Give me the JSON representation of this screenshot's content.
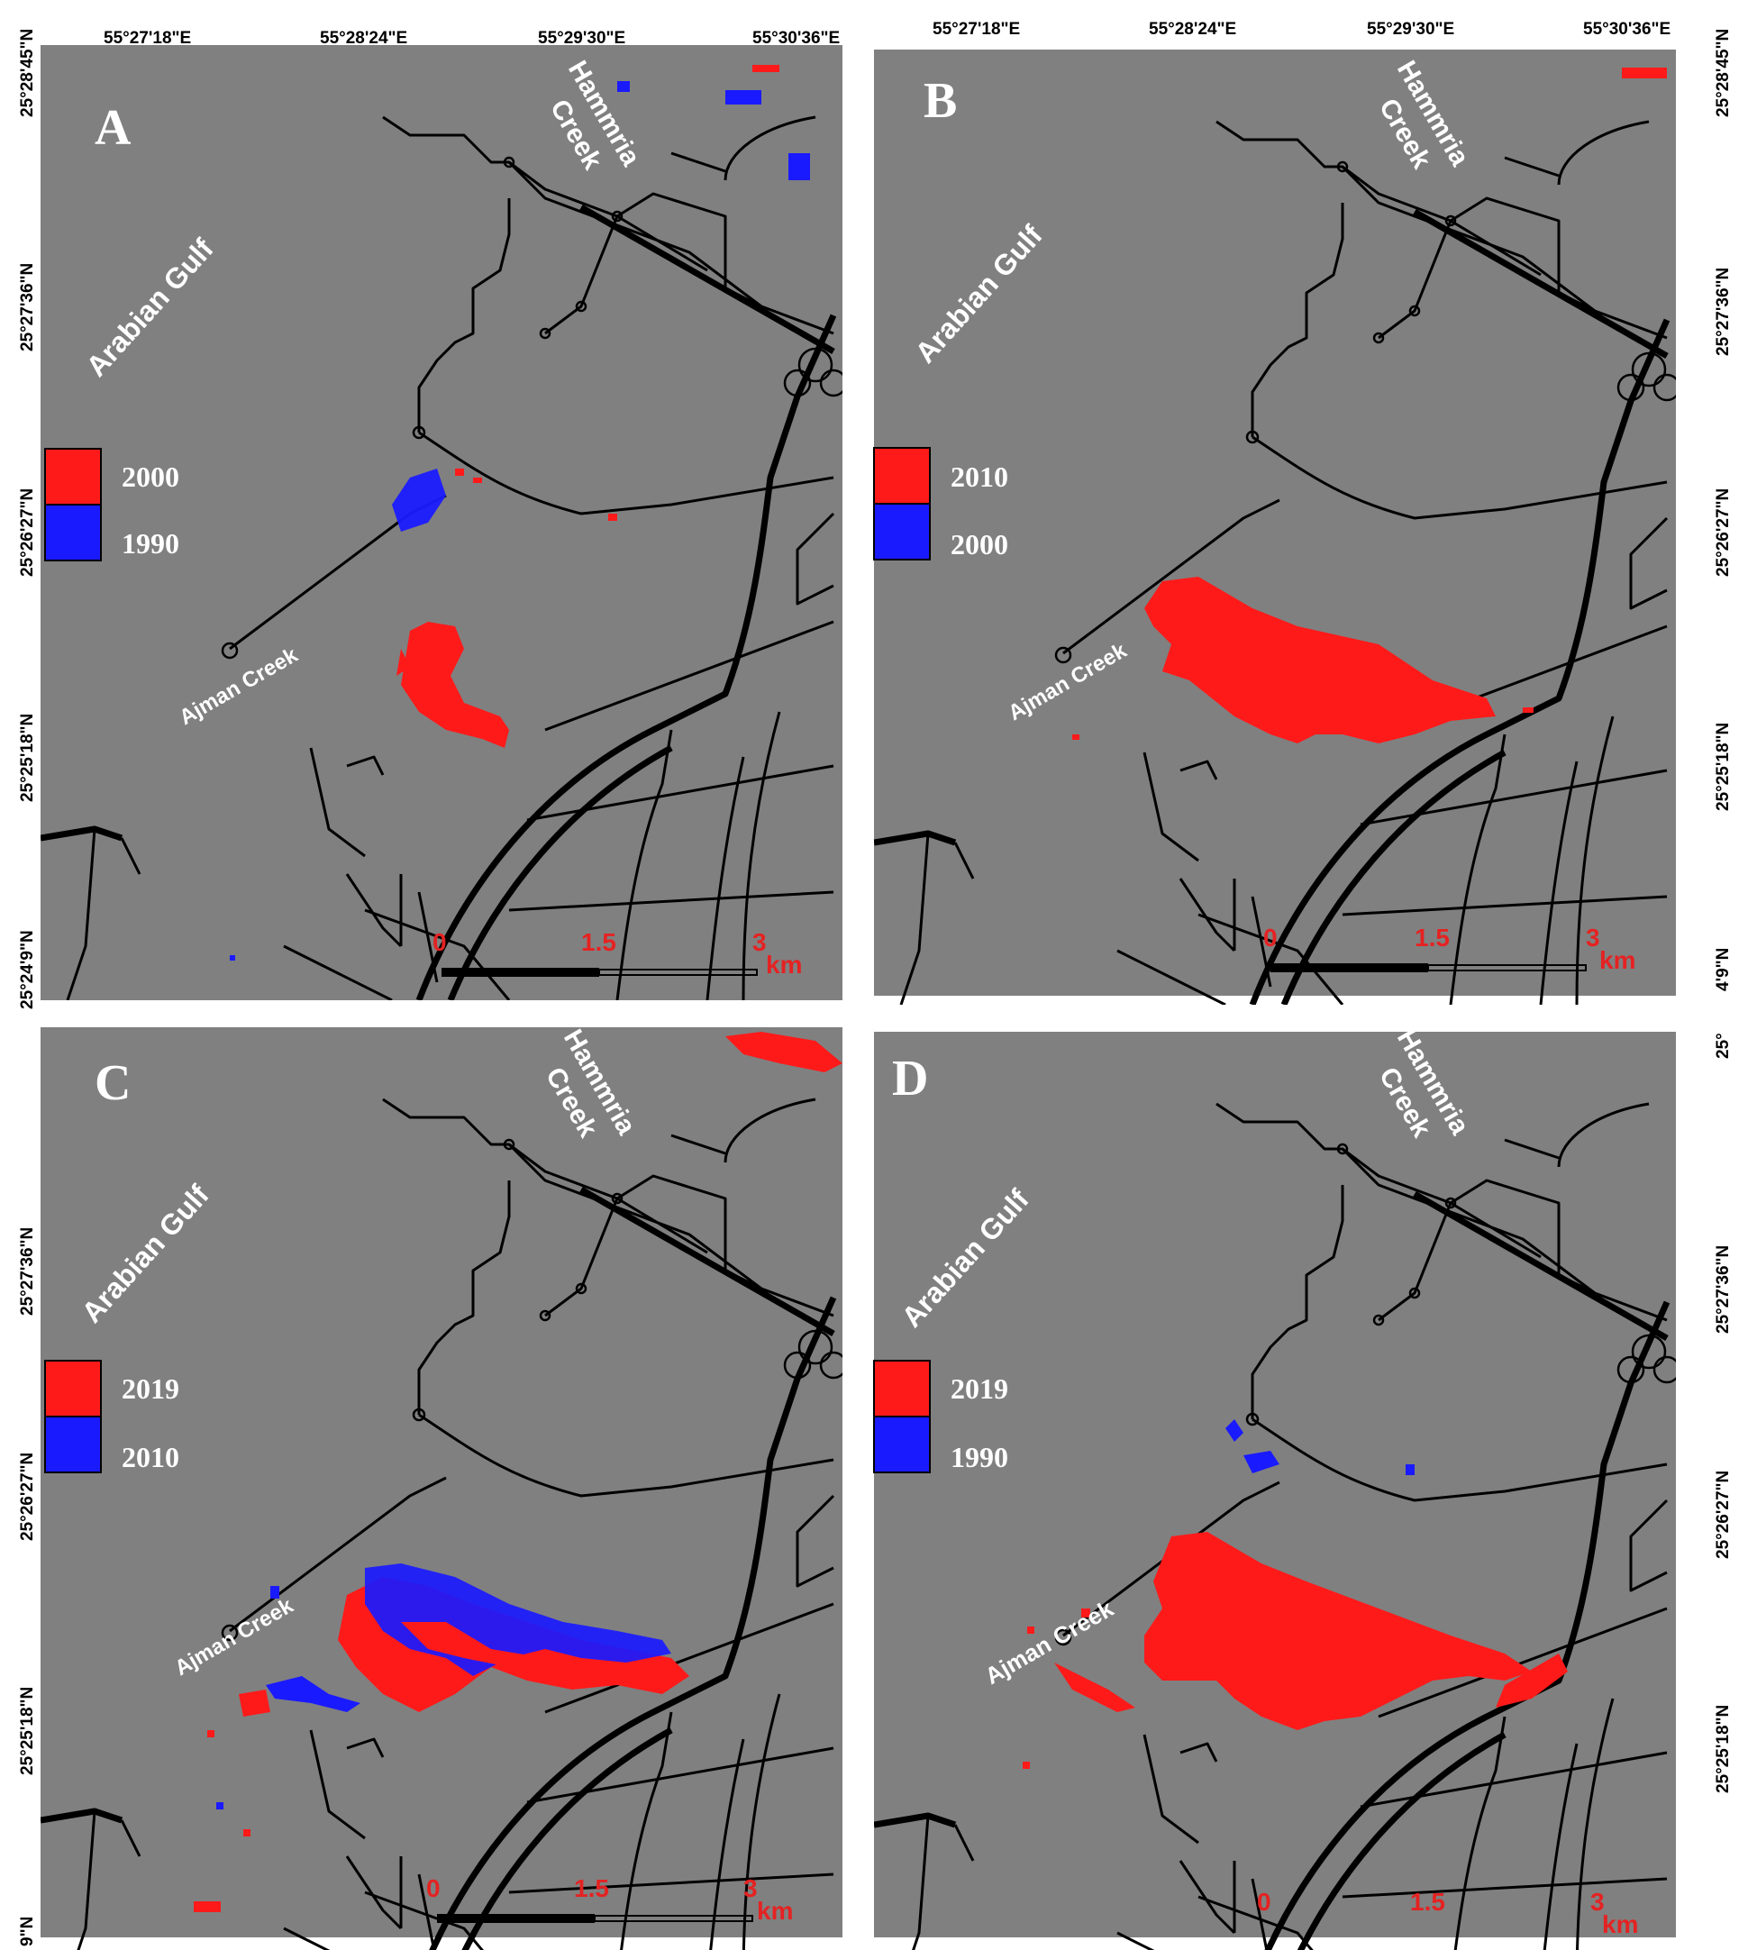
{
  "figure": {
    "panels": [
      {
        "id": "A",
        "letter": "A",
        "legend": [
          {
            "year": "2000",
            "color": "#ff1a1a"
          },
          {
            "year": "1990",
            "color": "#1a1aff"
          }
        ],
        "top_longitudes": [
          "55°27'18\"E",
          "55°28'24\"E",
          "55°29'30\"E",
          "55°30'36\"E"
        ],
        "left_latitudes": [
          "25°28'45\"N",
          "25°27'36\"N",
          "25°26'27\"N",
          "25°25'18\"N",
          "25°24'9\"N"
        ]
      },
      {
        "id": "B",
        "letter": "B",
        "legend": [
          {
            "year": "2010",
            "color": "#ff1a1a"
          },
          {
            "year": "2000",
            "color": "#1a1aff"
          }
        ],
        "top_longitudes": [
          "55°27'18\"E",
          "55°28'24\"E",
          "55°29'30\"E",
          "55°30'36\"E"
        ],
        "right_latitudes": [
          "25°28'45\"N",
          "25°27'36\"N",
          "25°26'27\"N",
          "25°25'18\"N",
          "4'9\"N"
        ]
      },
      {
        "id": "C",
        "letter": "C",
        "legend": [
          {
            "year": "2019",
            "color": "#ff1a1a"
          },
          {
            "year": "2010",
            "color": "#1a1aff"
          }
        ],
        "left_latitudes": [
          "25°27'36\"N",
          "25°26'27\"N",
          "25°25'18\"N",
          "9\"N"
        ]
      },
      {
        "id": "D",
        "letter": "D",
        "legend": [
          {
            "year": "2019",
            "color": "#ff1a1a"
          },
          {
            "year": "1990",
            "color": "#1a1aff"
          }
        ],
        "right_latitudes": [
          "25°",
          "25°27'36\"N",
          "25°26'27\"N",
          "25°25'18\"N"
        ]
      }
    ],
    "place_labels": {
      "gulf": "Arabian Gulf",
      "ajman_creek": "Ajman Creek",
      "hamriya_line1": "Hammria",
      "hamriya_line2": "Creek"
    },
    "scale_bar": {
      "ticks": [
        "0",
        "1.5",
        "3"
      ],
      "unit": "km"
    },
    "colors": {
      "background": "#808080",
      "roads": "#000000",
      "increase": "#ff1a1a",
      "decrease": "#1a1aff",
      "text_white": "#ffffff",
      "scale_text": "#e52222"
    }
  }
}
